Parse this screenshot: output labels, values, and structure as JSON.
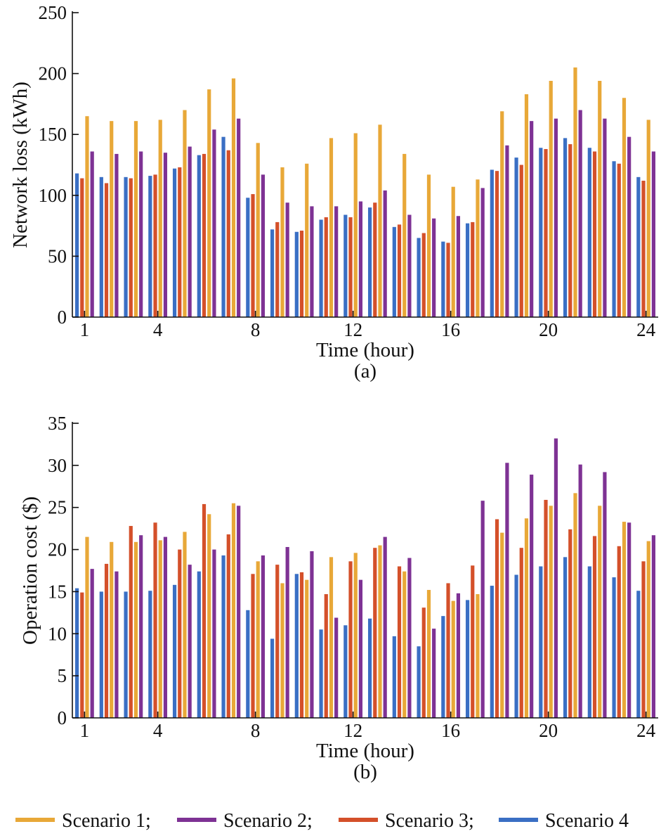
{
  "chart_data": [
    {
      "type": "bar",
      "panel_label": "(a)",
      "xlabel": "Time (hour)",
      "ylabel": "Network loss (kWh)",
      "ylim": [
        0,
        250
      ],
      "yticks": [
        0,
        50,
        100,
        150,
        200,
        250
      ],
      "xlim": [
        0.5,
        24.5
      ],
      "xticks": [
        1,
        4,
        8,
        12,
        16,
        20,
        24
      ],
      "grid": false,
      "categories": [
        1,
        2,
        3,
        4,
        5,
        6,
        7,
        8,
        9,
        10,
        11,
        12,
        13,
        14,
        15,
        16,
        17,
        18,
        19,
        20,
        21,
        22,
        23,
        24
      ],
      "series": [
        {
          "name": "Scenario 4",
          "color": "#3a6fc4",
          "values": [
            118,
            115,
            115,
            116,
            122,
            133,
            148,
            98,
            72,
            70,
            80,
            84,
            90,
            74,
            65,
            62,
            77,
            121,
            131,
            139,
            147,
            139,
            128,
            115
          ]
        },
        {
          "name": "Scenario 3",
          "color": "#d4502a",
          "values": [
            114,
            110,
            114,
            117,
            123,
            134,
            137,
            101,
            78,
            71,
            82,
            82,
            94,
            76,
            69,
            61,
            78,
            120,
            125,
            138,
            142,
            136,
            126,
            112
          ]
        },
        {
          "name": "Scenario 1",
          "color": "#e8a838",
          "values": [
            165,
            161,
            161,
            162,
            170,
            187,
            196,
            143,
            123,
            126,
            147,
            151,
            158,
            134,
            117,
            107,
            113,
            169,
            183,
            194,
            205,
            194,
            180,
            162
          ]
        },
        {
          "name": "Scenario 2",
          "color": "#7e3294",
          "values": [
            136,
            134,
            136,
            135,
            140,
            154,
            163,
            117,
            94,
            91,
            91,
            95,
            104,
            84,
            81,
            83,
            106,
            141,
            161,
            163,
            170,
            163,
            148,
            136
          ]
        }
      ]
    },
    {
      "type": "bar",
      "panel_label": "(b)",
      "xlabel": "Time (hour)",
      "ylabel": "Operation cost ($)",
      "ylim": [
        0,
        35
      ],
      "yticks": [
        0,
        5,
        10,
        15,
        20,
        25,
        30,
        35
      ],
      "xlim": [
        0.5,
        24.5
      ],
      "xticks": [
        1,
        4,
        8,
        12,
        16,
        20,
        24
      ],
      "grid": false,
      "categories": [
        1,
        2,
        3,
        4,
        5,
        6,
        7,
        8,
        9,
        10,
        11,
        12,
        13,
        14,
        15,
        16,
        17,
        18,
        19,
        20,
        21,
        22,
        23,
        24
      ],
      "series": [
        {
          "name": "Scenario 4",
          "color": "#3a6fc4",
          "values": [
            15.4,
            15.0,
            15.0,
            15.1,
            15.8,
            17.4,
            19.3,
            12.8,
            9.4,
            17.1,
            10.5,
            11.0,
            11.8,
            9.7,
            8.5,
            12.1,
            14.0,
            15.7,
            17.0,
            18.0,
            19.1,
            18.0,
            16.7,
            15.1
          ]
        },
        {
          "name": "Scenario 3",
          "color": "#d4502a",
          "values": [
            14.9,
            18.3,
            22.8,
            23.2,
            20.0,
            25.4,
            21.8,
            17.1,
            18.2,
            17.3,
            14.7,
            18.6,
            20.2,
            18.0,
            13.1,
            16.0,
            18.1,
            23.6,
            20.2,
            25.9,
            22.4,
            21.6,
            20.4,
            18.6
          ]
        },
        {
          "name": "Scenario 1",
          "color": "#e8a838",
          "values": [
            21.5,
            20.9,
            20.9,
            21.1,
            22.1,
            24.2,
            25.5,
            18.6,
            16.0,
            16.4,
            19.1,
            19.6,
            20.5,
            17.4,
            15.2,
            13.9,
            14.7,
            22.0,
            23.7,
            25.2,
            26.7,
            25.2,
            23.3,
            21.0
          ]
        },
        {
          "name": "Scenario 2",
          "color": "#7e3294",
          "values": [
            17.7,
            17.4,
            21.7,
            21.5,
            18.2,
            20.0,
            25.2,
            19.3,
            20.3,
            19.8,
            11.9,
            16.4,
            21.5,
            19.0,
            10.6,
            14.8,
            25.8,
            30.3,
            28.9,
            33.2,
            30.1,
            29.2,
            23.2,
            21.7
          ]
        }
      ]
    }
  ],
  "legend": {
    "position": "bottom",
    "items": [
      {
        "label": "Scenario 1;",
        "color": "#e8a838"
      },
      {
        "label": "Scenario 2;",
        "color": "#7e3294"
      },
      {
        "label": "Scenario 3;",
        "color": "#d4502a"
      },
      {
        "label": "Scenario 4",
        "color": "#3a6fc4"
      }
    ]
  }
}
